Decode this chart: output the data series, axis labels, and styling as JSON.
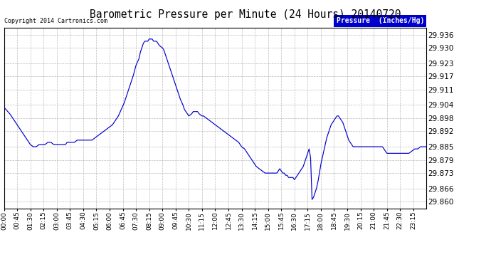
{
  "title": "Barometric Pressure per Minute (24 Hours) 20140720",
  "copyright": "Copyright 2014 Cartronics.com",
  "legend_label": "Pressure  (Inches/Hg)",
  "background_color": "#ffffff",
  "line_color": "#0000cc",
  "grid_color": "#aaaaaa",
  "yticks": [
    29.86,
    29.866,
    29.873,
    29.879,
    29.885,
    29.892,
    29.898,
    29.904,
    29.911,
    29.917,
    29.923,
    29.93,
    29.936
  ],
  "ymin": 29.857,
  "ymax": 29.939,
  "xtick_labels": [
    "00:00",
    "00:45",
    "01:30",
    "02:15",
    "03:00",
    "03:45",
    "04:30",
    "05:15",
    "06:00",
    "06:45",
    "07:30",
    "08:15",
    "09:00",
    "09:45",
    "10:30",
    "11:15",
    "12:00",
    "12:45",
    "13:30",
    "14:15",
    "15:00",
    "15:45",
    "16:30",
    "17:15",
    "18:00",
    "18:45",
    "19:30",
    "20:15",
    "21:00",
    "21:45",
    "22:30",
    "23:15"
  ],
  "data_keypoints": [
    [
      0,
      29.903
    ],
    [
      20,
      29.9
    ],
    [
      40,
      29.896
    ],
    [
      60,
      29.892
    ],
    [
      75,
      29.889
    ],
    [
      85,
      29.887
    ],
    [
      90,
      29.886
    ],
    [
      100,
      29.885
    ],
    [
      110,
      29.885
    ],
    [
      120,
      29.886
    ],
    [
      130,
      29.886
    ],
    [
      140,
      29.886
    ],
    [
      150,
      29.887
    ],
    [
      160,
      29.887
    ],
    [
      170,
      29.886
    ],
    [
      180,
      29.886
    ],
    [
      190,
      29.886
    ],
    [
      200,
      29.886
    ],
    [
      210,
      29.886
    ],
    [
      215,
      29.887
    ],
    [
      220,
      29.887
    ],
    [
      230,
      29.887
    ],
    [
      240,
      29.887
    ],
    [
      250,
      29.888
    ],
    [
      260,
      29.888
    ],
    [
      270,
      29.888
    ],
    [
      280,
      29.888
    ],
    [
      290,
      29.888
    ],
    [
      300,
      29.888
    ],
    [
      310,
      29.889
    ],
    [
      320,
      29.89
    ],
    [
      330,
      29.891
    ],
    [
      340,
      29.892
    ],
    [
      350,
      29.893
    ],
    [
      360,
      29.894
    ],
    [
      370,
      29.895
    ],
    [
      380,
      29.897
    ],
    [
      390,
      29.899
    ],
    [
      400,
      29.902
    ],
    [
      410,
      29.905
    ],
    [
      420,
      29.909
    ],
    [
      430,
      29.913
    ],
    [
      440,
      29.917
    ],
    [
      450,
      29.922
    ],
    [
      460,
      29.925
    ],
    [
      465,
      29.928
    ],
    [
      470,
      29.93
    ],
    [
      475,
      29.932
    ],
    [
      480,
      29.933
    ],
    [
      485,
      29.933
    ],
    [
      490,
      29.933
    ],
    [
      495,
      29.934
    ],
    [
      500,
      29.934
    ],
    [
      505,
      29.934
    ],
    [
      510,
      29.933
    ],
    [
      515,
      29.933
    ],
    [
      520,
      29.933
    ],
    [
      525,
      29.932
    ],
    [
      530,
      29.931
    ],
    [
      540,
      29.93
    ],
    [
      545,
      29.929
    ],
    [
      550,
      29.927
    ],
    [
      555,
      29.925
    ],
    [
      560,
      29.923
    ],
    [
      565,
      29.921
    ],
    [
      570,
      29.919
    ],
    [
      580,
      29.915
    ],
    [
      590,
      29.911
    ],
    [
      600,
      29.907
    ],
    [
      610,
      29.904
    ],
    [
      615,
      29.902
    ],
    [
      620,
      29.901
    ],
    [
      625,
      29.9
    ],
    [
      630,
      29.899
    ],
    [
      640,
      29.9
    ],
    [
      645,
      29.901
    ],
    [
      650,
      29.901
    ],
    [
      655,
      29.901
    ],
    [
      660,
      29.901
    ],
    [
      665,
      29.9
    ],
    [
      675,
      29.899
    ],
    [
      680,
      29.899
    ],
    [
      690,
      29.898
    ],
    [
      700,
      29.897
    ],
    [
      710,
      29.896
    ],
    [
      720,
      29.895
    ],
    [
      730,
      29.894
    ],
    [
      740,
      29.893
    ],
    [
      750,
      29.892
    ],
    [
      760,
      29.891
    ],
    [
      770,
      29.89
    ],
    [
      780,
      29.889
    ],
    [
      790,
      29.888
    ],
    [
      800,
      29.887
    ],
    [
      810,
      29.885
    ],
    [
      820,
      29.884
    ],
    [
      830,
      29.882
    ],
    [
      840,
      29.88
    ],
    [
      850,
      29.878
    ],
    [
      860,
      29.876
    ],
    [
      870,
      29.875
    ],
    [
      880,
      29.874
    ],
    [
      890,
      29.873
    ],
    [
      900,
      29.873
    ],
    [
      910,
      29.873
    ],
    [
      915,
      29.873
    ],
    [
      920,
      29.873
    ],
    [
      925,
      29.873
    ],
    [
      930,
      29.873
    ],
    [
      935,
      29.874
    ],
    [
      940,
      29.875
    ],
    [
      945,
      29.874
    ],
    [
      950,
      29.873
    ],
    [
      955,
      29.873
    ],
    [
      960,
      29.872
    ],
    [
      965,
      29.872
    ],
    [
      970,
      29.871
    ],
    [
      975,
      29.871
    ],
    [
      980,
      29.871
    ],
    [
      985,
      29.871
    ],
    [
      990,
      29.87
    ],
    [
      995,
      29.871
    ],
    [
      1000,
      29.872
    ],
    [
      1005,
      29.873
    ],
    [
      1010,
      29.874
    ],
    [
      1015,
      29.875
    ],
    [
      1020,
      29.876
    ],
    [
      1025,
      29.878
    ],
    [
      1030,
      29.88
    ],
    [
      1035,
      29.882
    ],
    [
      1040,
      29.884
    ],
    [
      1045,
      29.88
    ],
    [
      1050,
      29.861
    ],
    [
      1055,
      29.862
    ],
    [
      1060,
      29.864
    ],
    [
      1065,
      29.866
    ],
    [
      1070,
      29.869
    ],
    [
      1075,
      29.873
    ],
    [
      1080,
      29.877
    ],
    [
      1085,
      29.88
    ],
    [
      1090,
      29.883
    ],
    [
      1095,
      29.886
    ],
    [
      1100,
      29.889
    ],
    [
      1105,
      29.891
    ],
    [
      1110,
      29.893
    ],
    [
      1115,
      29.895
    ],
    [
      1120,
      29.896
    ],
    [
      1125,
      29.897
    ],
    [
      1130,
      29.898
    ],
    [
      1135,
      29.899
    ],
    [
      1140,
      29.899
    ],
    [
      1145,
      29.898
    ],
    [
      1150,
      29.897
    ],
    [
      1155,
      29.896
    ],
    [
      1160,
      29.894
    ],
    [
      1165,
      29.892
    ],
    [
      1170,
      29.89
    ],
    [
      1175,
      29.888
    ],
    [
      1180,
      29.887
    ],
    [
      1185,
      29.886
    ],
    [
      1190,
      29.885
    ],
    [
      1195,
      29.885
    ],
    [
      1200,
      29.885
    ],
    [
      1205,
      29.885
    ],
    [
      1210,
      29.885
    ],
    [
      1215,
      29.885
    ],
    [
      1220,
      29.885
    ],
    [
      1225,
      29.885
    ],
    [
      1230,
      29.885
    ],
    [
      1235,
      29.885
    ],
    [
      1240,
      29.885
    ],
    [
      1245,
      29.885
    ],
    [
      1250,
      29.885
    ],
    [
      1255,
      29.885
    ],
    [
      1260,
      29.885
    ],
    [
      1265,
      29.885
    ],
    [
      1270,
      29.885
    ],
    [
      1275,
      29.885
    ],
    [
      1280,
      29.885
    ],
    [
      1285,
      29.885
    ],
    [
      1290,
      29.885
    ],
    [
      1295,
      29.884
    ],
    [
      1300,
      29.883
    ],
    [
      1305,
      29.882
    ],
    [
      1310,
      29.882
    ],
    [
      1320,
      29.882
    ],
    [
      1330,
      29.882
    ],
    [
      1340,
      29.882
    ],
    [
      1350,
      29.882
    ],
    [
      1360,
      29.882
    ],
    [
      1370,
      29.882
    ],
    [
      1380,
      29.882
    ],
    [
      1390,
      29.883
    ],
    [
      1400,
      29.884
    ],
    [
      1410,
      29.884
    ],
    [
      1420,
      29.885
    ],
    [
      1430,
      29.885
    ],
    [
      1439,
      29.885
    ]
  ]
}
